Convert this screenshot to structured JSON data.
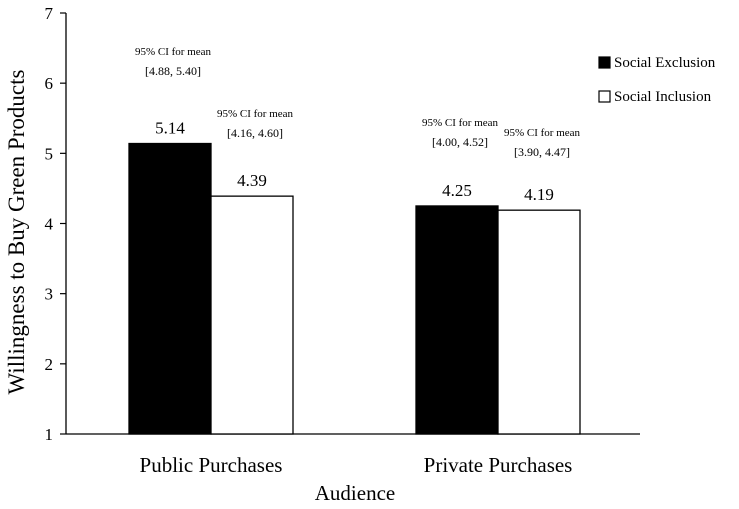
{
  "chart_data": {
    "type": "bar",
    "categories": [
      "Public Purchases",
      "Private Purchases"
    ],
    "series": [
      {
        "name": "Social Exclusion",
        "values": [
          5.14,
          4.25
        ],
        "color": "#000000",
        "ci_labels": [
          "95% CI for mean",
          "95% CI for mean"
        ],
        "ci_values": [
          "[4.88, 5.40]",
          "[4.00, 4.52]"
        ]
      },
      {
        "name": "Social Inclusion",
        "values": [
          4.39,
          4.19
        ],
        "color": "#ffffff",
        "ci_labels": [
          "95% CI for mean",
          "95% CI for mean"
        ],
        "ci_values": [
          "[4.16, 4.60]",
          "[3.90, 4.47]"
        ]
      }
    ],
    "data_labels": [
      [
        "5.14",
        "4.25"
      ],
      [
        "4.39",
        "4.19"
      ]
    ],
    "xlabel": "Audience",
    "ylabel": "Willingness to Buy Green Products",
    "ylim": [
      1,
      7
    ],
    "yticks": [
      "1",
      "2",
      "3",
      "4",
      "5",
      "6",
      "7"
    ],
    "grid": false,
    "legend_position": "top-right"
  }
}
